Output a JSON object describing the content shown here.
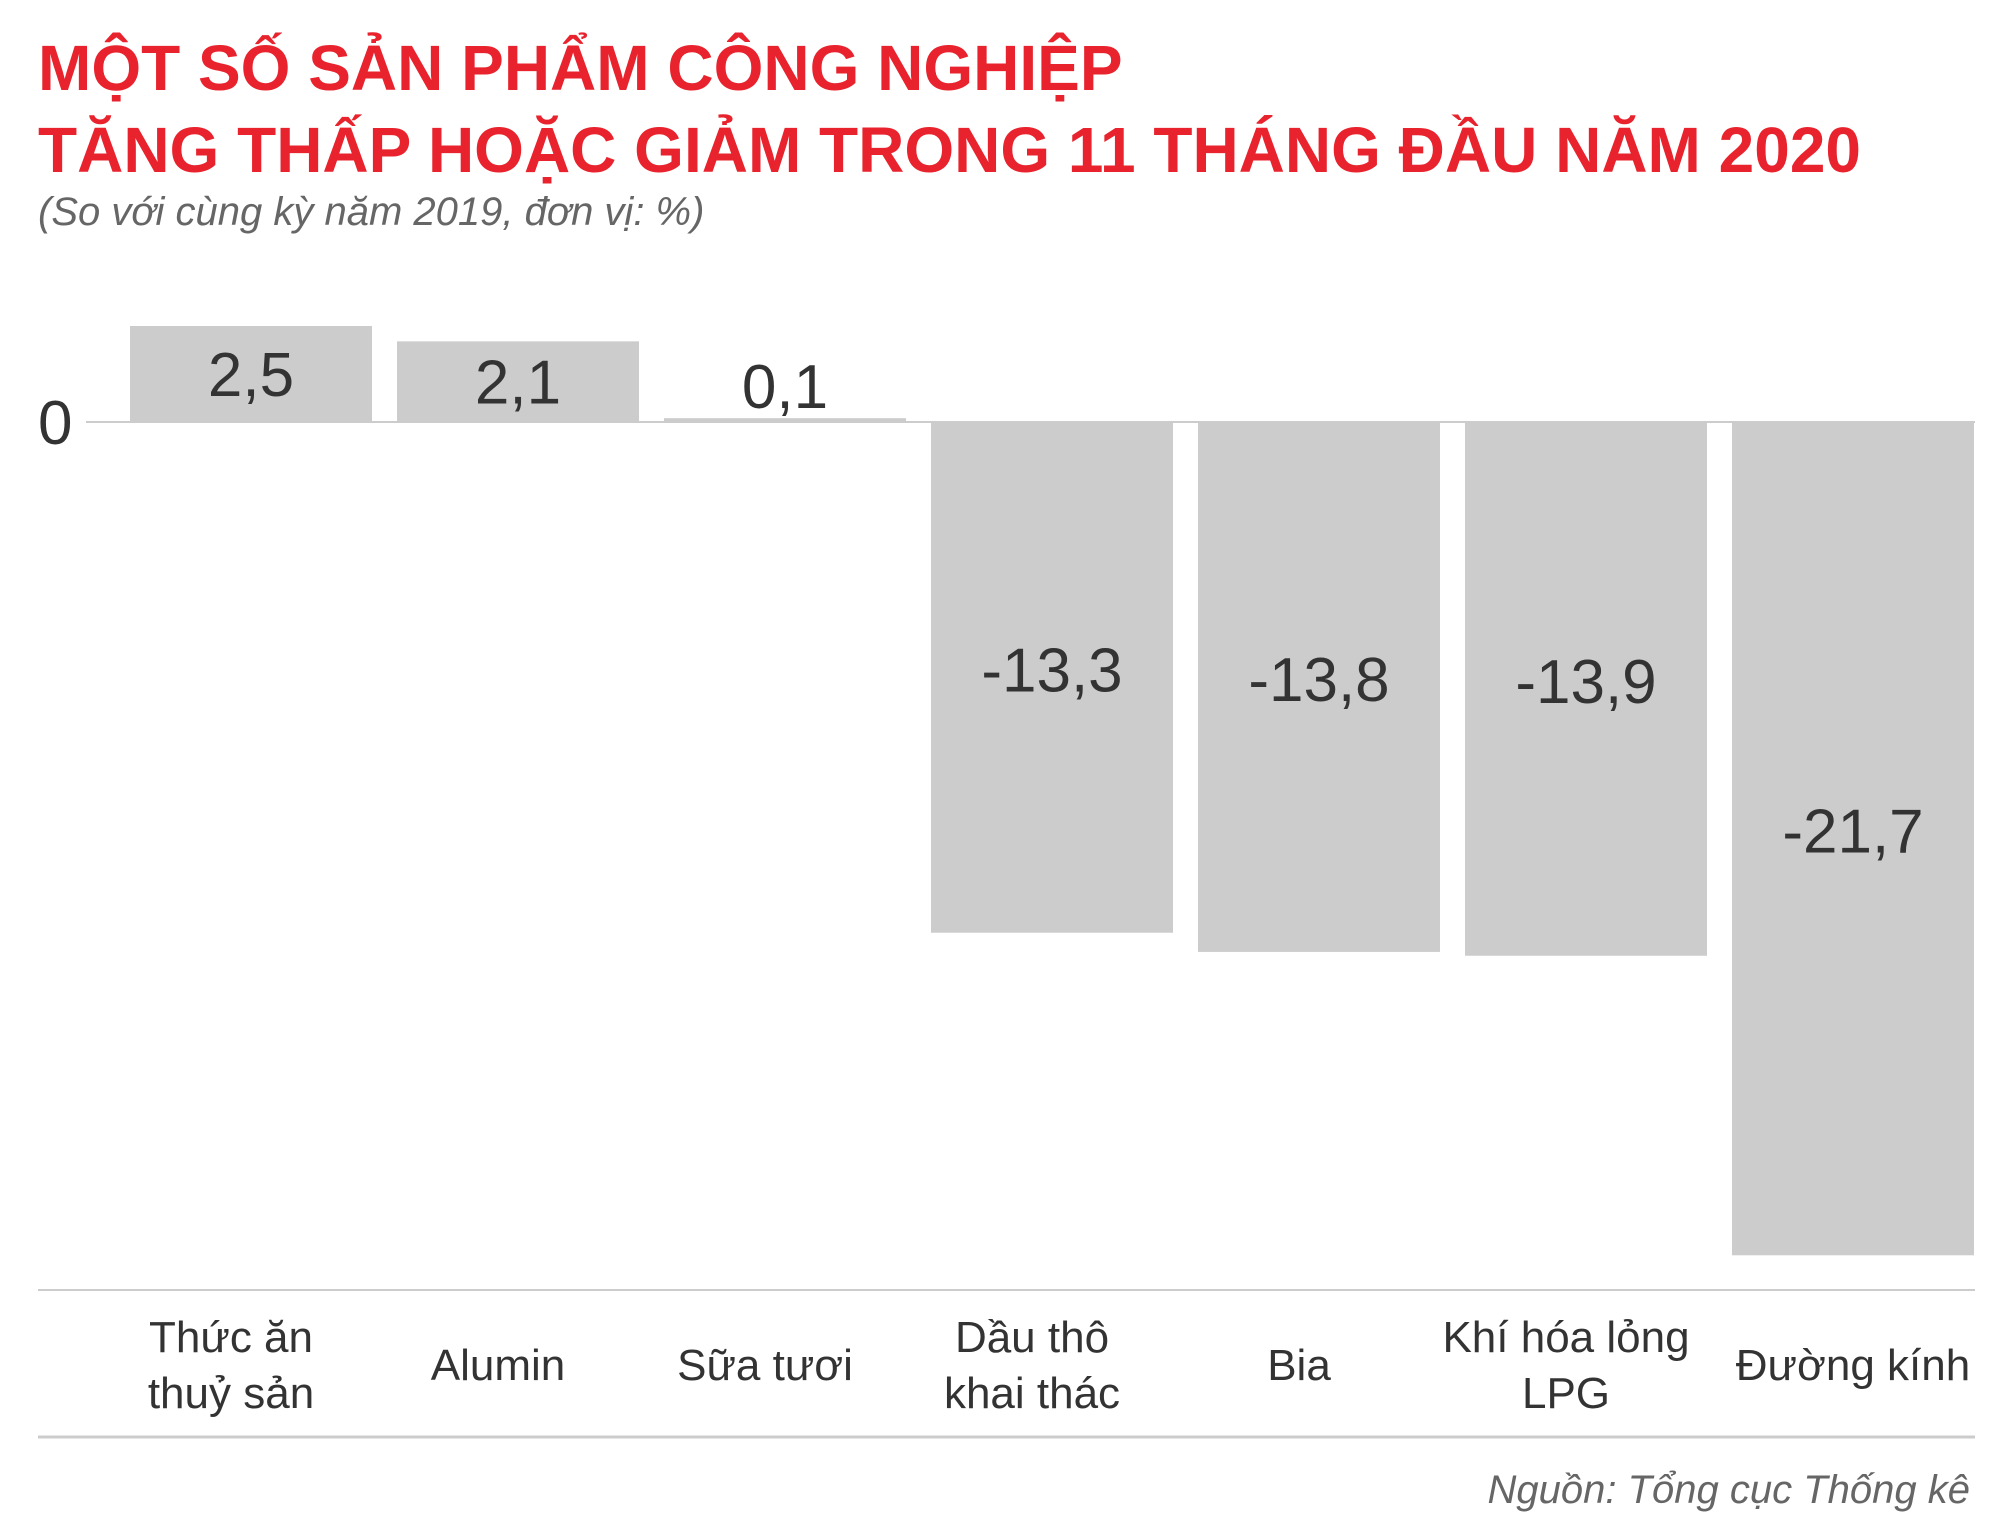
{
  "title_line1": "MỘT SỐ SẢN PHẨM CÔNG NGHIỆP",
  "title_line2": "TĂNG THẤP HOẶC GIẢM TRONG 11 THÁNG ĐẦU NĂM 2020",
  "subtitle": "(So với cùng kỳ năm 2019, đơn vị: %)",
  "source": "Nguồn: Tổng cục Thống kê",
  "colors": {
    "title": "#e8232d",
    "bar": "#cccccc",
    "text": "#333333",
    "muted": "#666666",
    "axis": "#cccccc"
  },
  "chart_data": {
    "type": "bar",
    "title": "MỘT SỐ SẢN PHẨM CÔNG NGHIỆP TĂNG THẤP HOẶC GIẢM TRONG 11 THÁNG ĐẦU NĂM 2020",
    "subtitle": "(So với cùng kỳ năm 2019, đơn vị: %)",
    "categories": [
      [
        "Thức ăn",
        "thuỷ sản"
      ],
      [
        "Alumin"
      ],
      [
        "Sữa tươi"
      ],
      [
        "Dầu thô",
        "khai thác"
      ],
      [
        "Bia"
      ],
      [
        "Khí hóa lỏng",
        "LPG"
      ],
      [
        "Đường kính"
      ]
    ],
    "values": [
      2.5,
      2.1,
      0.1,
      -13.3,
      -13.8,
      -13.9,
      -21.7
    ],
    "value_labels": [
      "2,5",
      "2,1",
      "0,1",
      "-13,3",
      "-13,8",
      "-13,9",
      "-21,7"
    ],
    "y_tick_labels": [
      {
        "value": 0,
        "label": "0"
      }
    ],
    "ylim": [
      -21.7,
      2.5
    ],
    "grid": false,
    "xlabel": "",
    "ylabel": ""
  }
}
